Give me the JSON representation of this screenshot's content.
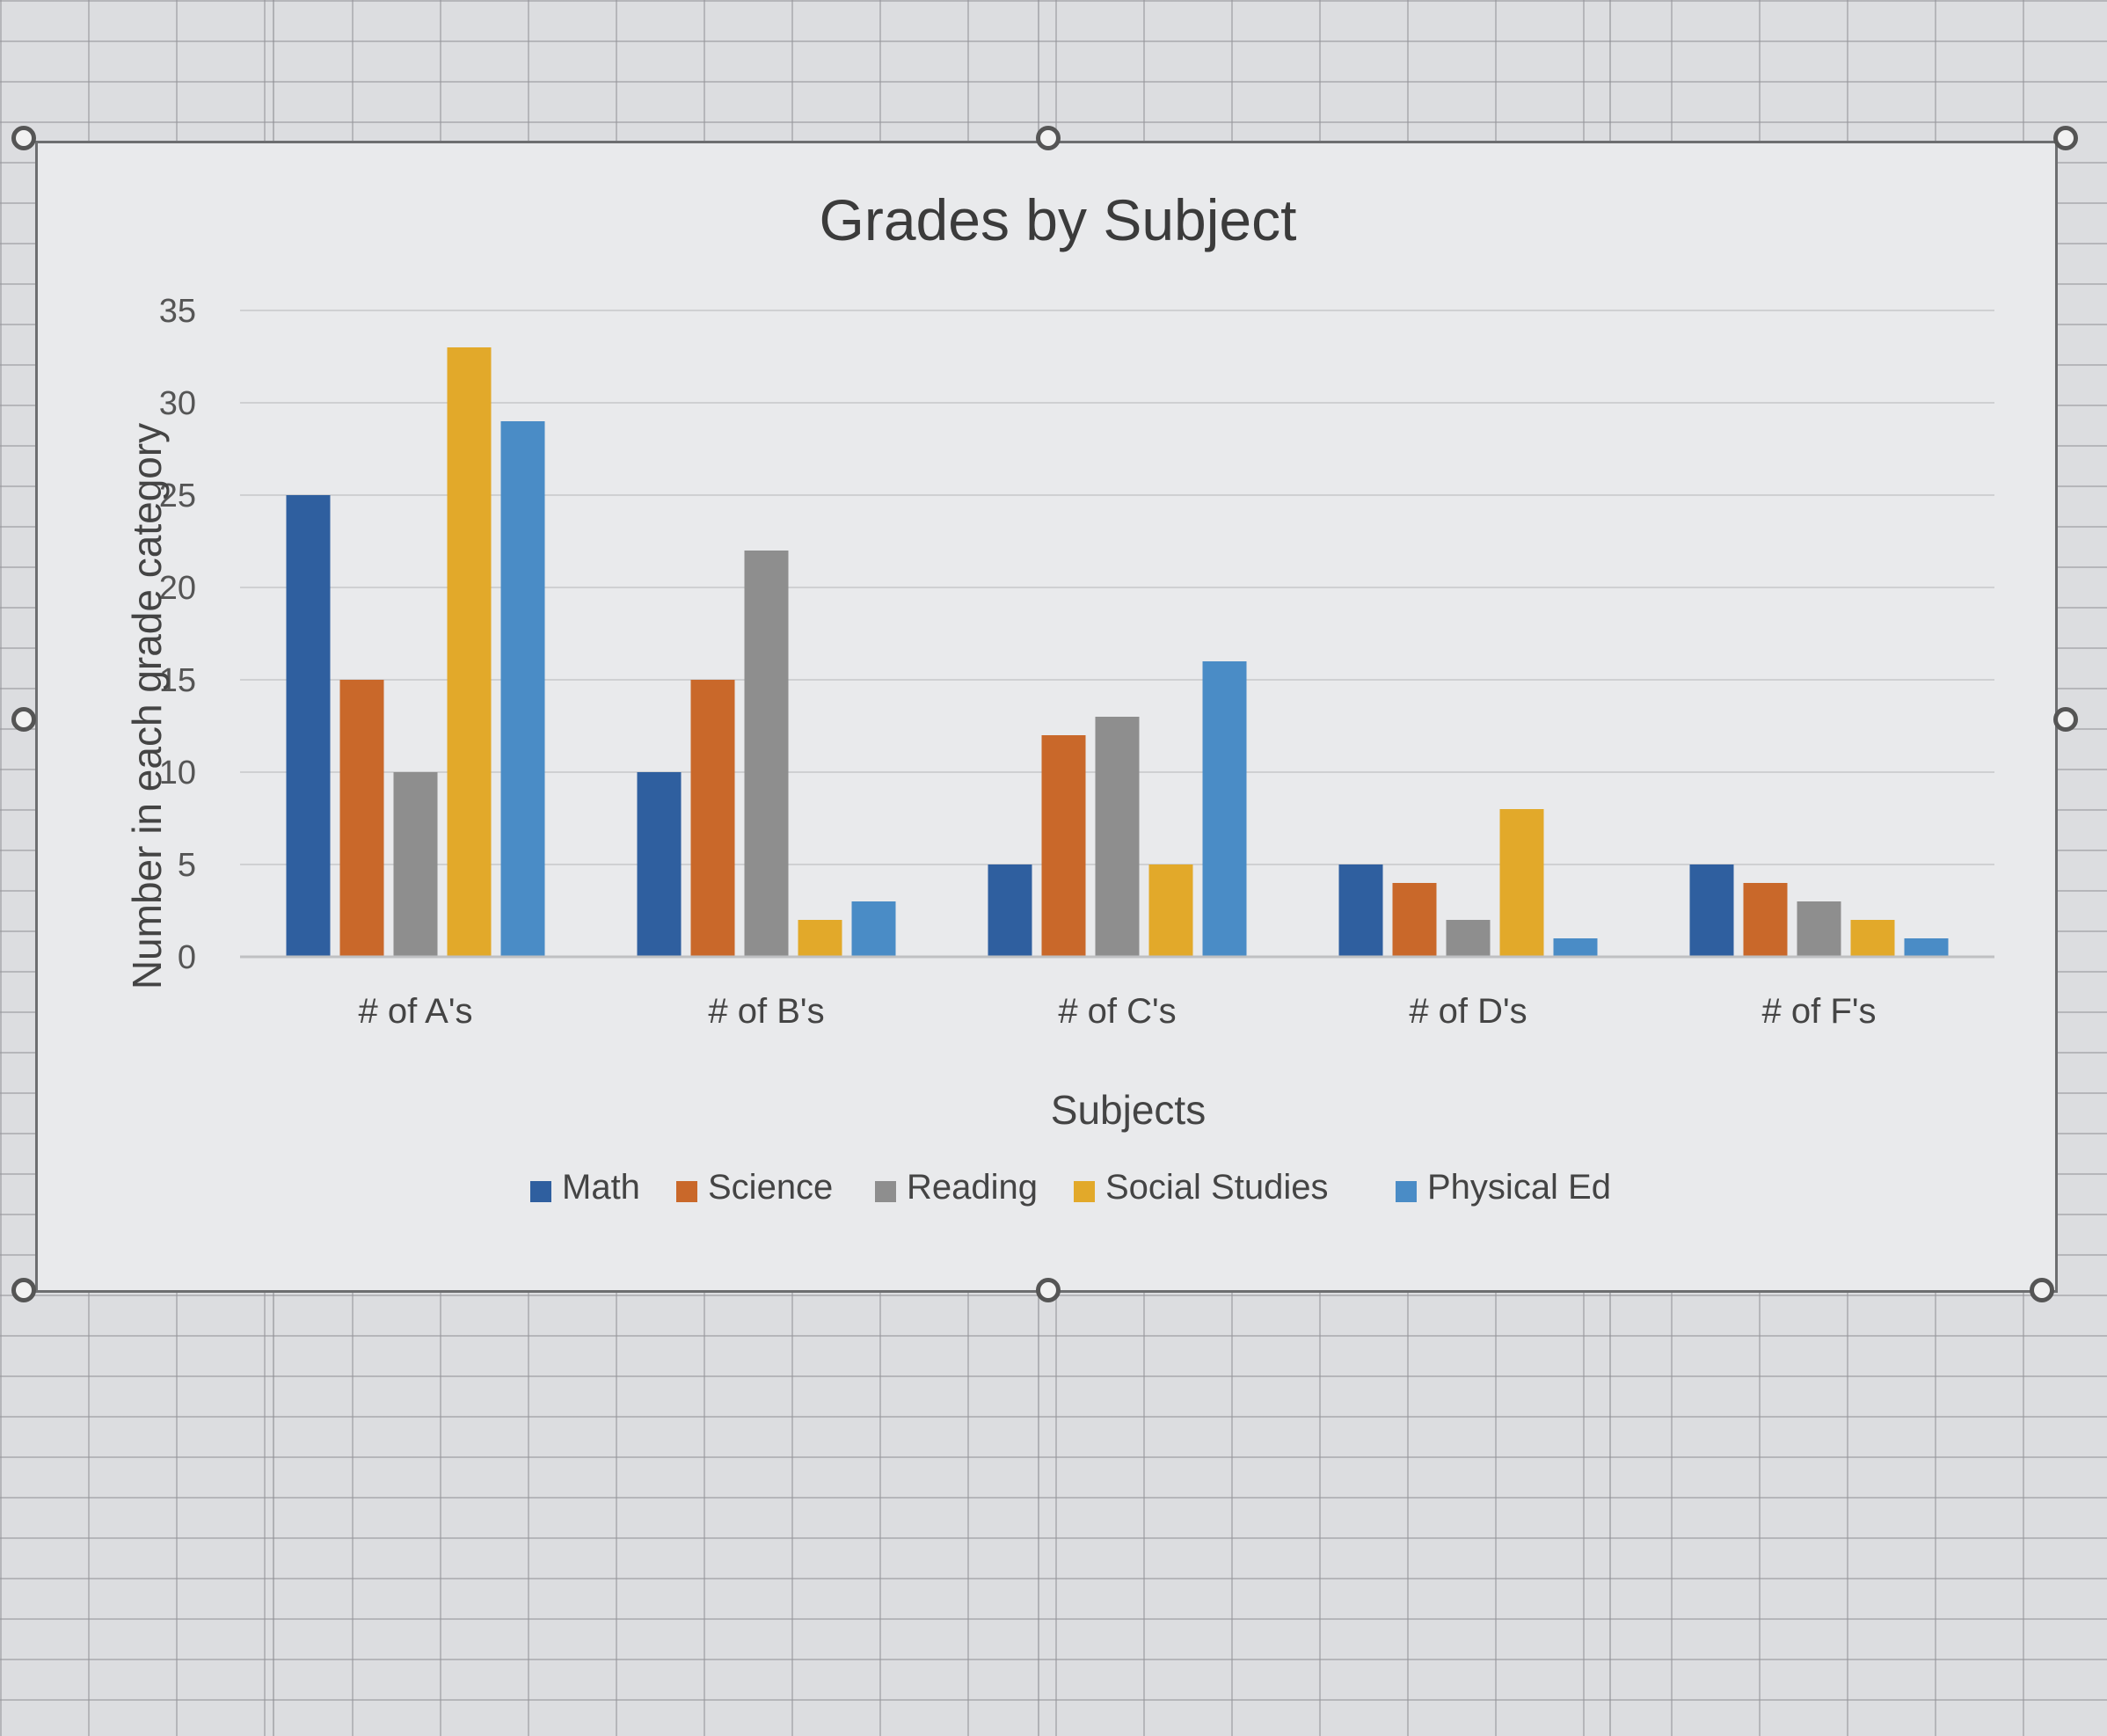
{
  "chart_data": {
    "type": "bar",
    "title": "Grades by Subject",
    "xlabel": "Subjects",
    "ylabel": "Number in each grade category",
    "categories": [
      "# of A's",
      "# of B's",
      "# of C's",
      "# of D's",
      "# of F's"
    ],
    "ylim": [
      0,
      35
    ],
    "yticks": [
      "0",
      "5",
      "10",
      "15",
      "20",
      "25",
      "30",
      "35"
    ],
    "grid": true,
    "legend_position": "bottom",
    "series": [
      {
        "name": "Math",
        "color": "#2f5f9f",
        "values": [
          25,
          10,
          5,
          5,
          5
        ]
      },
      {
        "name": "Science",
        "color": "#c9682a",
        "values": [
          15,
          15,
          12,
          4,
          4
        ]
      },
      {
        "name": "Reading",
        "color": "#8e8e8e",
        "values": [
          10,
          22,
          13,
          2,
          3
        ]
      },
      {
        "name": "Social Studies",
        "color": "#e2a92a",
        "values": [
          33,
          2,
          5,
          8,
          2
        ]
      },
      {
        "name": "Physical Ed",
        "color": "#4a8cc6",
        "values": [
          29,
          3,
          16,
          1,
          1
        ]
      }
    ]
  }
}
